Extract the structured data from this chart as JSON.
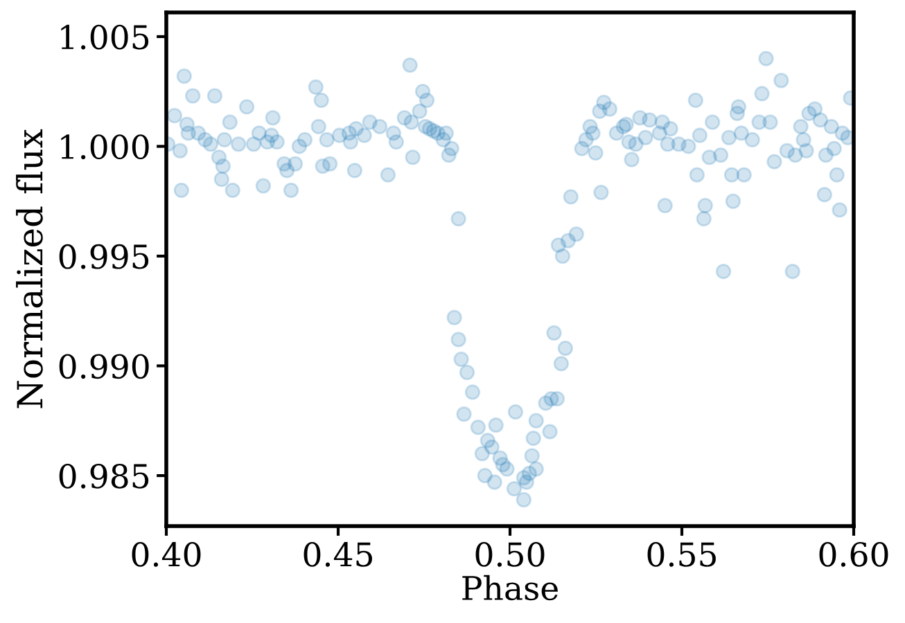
{
  "chart_data": {
    "type": "scatter",
    "xlabel": "Phase",
    "ylabel": "Normalized flux",
    "xlim": [
      0.4,
      0.6
    ],
    "ylim": [
      0.9827,
      1.0061
    ],
    "xticks": [
      {
        "value": 0.4,
        "label": "0.40"
      },
      {
        "value": 0.45,
        "label": "0.45"
      },
      {
        "value": 0.5,
        "label": "0.50"
      },
      {
        "value": 0.55,
        "label": "0.55"
      },
      {
        "value": 0.6,
        "label": "0.60"
      }
    ],
    "yticks": [
      {
        "value": 0.985,
        "label": "0.985"
      },
      {
        "value": 0.99,
        "label": "0.990"
      },
      {
        "value": 0.995,
        "label": "0.995"
      },
      {
        "value": 1.0,
        "label": "1.000"
      },
      {
        "value": 1.005,
        "label": "1.005"
      }
    ],
    "grid": false,
    "marker": "circle",
    "series": [
      {
        "color": "#1f77b4",
        "x": [
          0.4004,
          0.4024,
          0.404,
          0.4044,
          0.4052,
          0.406,
          0.4064,
          0.4077,
          0.4093,
          0.4113,
          0.4129,
          0.4141,
          0.4153,
          0.4161,
          0.4165,
          0.4169,
          0.4185,
          0.4193,
          0.421,
          0.4234,
          0.4254,
          0.427,
          0.4282,
          0.4294,
          0.4306,
          0.431,
          0.4322,
          0.4343,
          0.4351,
          0.4363,
          0.4375,
          0.4387,
          0.4403,
          0.4435,
          0.4443,
          0.4451,
          0.4455,
          0.4467,
          0.4476,
          0.4504,
          0.4532,
          0.4536,
          0.4548,
          0.4552,
          0.4576,
          0.4592,
          0.4621,
          0.4645,
          0.4661,
          0.4669,
          0.4693,
          0.4709,
          0.4713,
          0.4717,
          0.4737,
          0.4746,
          0.4758,
          0.4754,
          0.4766,
          0.4778,
          0.479,
          0.4806,
          0.4822,
          0.483,
          0.4814,
          0.485,
          0.4838,
          0.485,
          0.4858,
          0.4875,
          0.4891,
          0.4866,
          0.4907,
          0.4919,
          0.4935,
          0.4927,
          0.4947,
          0.4955,
          0.4959,
          0.4971,
          0.4979,
          0.4991,
          0.5012,
          0.5016,
          0.504,
          0.5048,
          0.504,
          0.5056,
          0.5064,
          0.5068,
          0.5076,
          0.5076,
          0.5104,
          0.5116,
          0.512,
          0.5128,
          0.5137,
          0.5149,
          0.5161,
          0.5141,
          0.5153,
          0.5169,
          0.5177,
          0.5193,
          0.5209,
          0.5221,
          0.5233,
          0.5241,
          0.5249,
          0.5261,
          0.5265,
          0.5273,
          0.529,
          0.531,
          0.533,
          0.5338,
          0.5346,
          0.5354,
          0.5366,
          0.5378,
          0.5394,
          0.5406,
          0.5435,
          0.5443,
          0.5451,
          0.5459,
          0.5467,
          0.5491,
          0.5519,
          0.554,
          0.5544,
          0.5552,
          0.5564,
          0.5568,
          0.558,
          0.5589,
          0.5613,
          0.5621,
          0.5637,
          0.5645,
          0.5649,
          0.5661,
          0.5665,
          0.5673,
          0.5681,
          0.5705,
          0.5725,
          0.5733,
          0.5745,
          0.5757,
          0.5769,
          0.5789,
          0.5806,
          0.5822,
          0.583,
          0.5846,
          0.5854,
          0.5862,
          0.587,
          0.5887,
          0.5903,
          0.5915,
          0.5919,
          0.5935,
          0.5943,
          0.5951,
          0.5959,
          0.5967,
          0.5983,
          0.5991
        ],
        "values": [
          1.0001,
          1.0014,
          0.9998,
          0.998,
          1.0032,
          1.001,
          1.0006,
          1.0023,
          1.0006,
          1.0003,
          1.0001,
          1.0023,
          0.9995,
          0.9985,
          0.9991,
          1.0003,
          1.0011,
          0.998,
          1.0001,
          1.0018,
          1.0001,
          1.0006,
          0.9982,
          1.0002,
          1.0005,
          1.0013,
          1.0002,
          0.9992,
          0.9989,
          0.998,
          0.9992,
          1.0,
          1.0003,
          1.0027,
          1.0009,
          1.0021,
          0.9991,
          1.0003,
          0.9992,
          1.0005,
          1.0006,
          1.0002,
          0.9989,
          1.0008,
          1.0005,
          1.0011,
          1.0009,
          0.9987,
          1.0006,
          1.0002,
          1.0013,
          1.0037,
          1.0011,
          0.9995,
          1.0016,
          1.0025,
          1.0021,
          1.0009,
          1.0008,
          1.0007,
          1.0006,
          1.0003,
          0.9996,
          0.9999,
          1.0006,
          0.9967,
          0.9922,
          0.9912,
          0.9903,
          0.9897,
          0.9888,
          0.9878,
          0.9872,
          0.986,
          0.9866,
          0.985,
          0.9863,
          0.9847,
          0.9873,
          0.9858,
          0.9855,
          0.9853,
          0.9844,
          0.9879,
          0.9849,
          0.9847,
          0.9839,
          0.9851,
          0.9859,
          0.9867,
          0.9853,
          0.9875,
          0.9883,
          0.987,
          0.9885,
          0.9915,
          0.9885,
          0.9901,
          0.9908,
          0.9955,
          0.995,
          0.9957,
          0.9977,
          0.996,
          0.9999,
          1.0003,
          1.0009,
          1.0006,
          0.9997,
          1.0016,
          0.9979,
          1.002,
          1.0017,
          1.0006,
          1.0009,
          1.001,
          1.0002,
          0.9994,
          1.0001,
          1.0013,
          1.0004,
          1.0012,
          1.0006,
          1.0011,
          0.9973,
          1.0001,
          1.0008,
          1.0001,
          1.0,
          1.0021,
          0.9987,
          1.0005,
          0.9967,
          0.9973,
          0.9995,
          1.0011,
          0.9996,
          0.9943,
          1.0004,
          0.9987,
          0.9975,
          1.0015,
          1.0018,
          1.0006,
          0.9987,
          1.0003,
          1.0011,
          1.0024,
          1.004,
          1.0011,
          0.9993,
          1.003,
          0.9998,
          0.9943,
          0.9996,
          1.0009,
          1.0003,
          0.9998,
          1.0015,
          1.0017,
          1.0012,
          0.9978,
          0.9996,
          1.0009,
          0.9999,
          0.9987,
          0.9971,
          1.0006,
          1.0004,
          1.0022
        ]
      }
    ]
  }
}
